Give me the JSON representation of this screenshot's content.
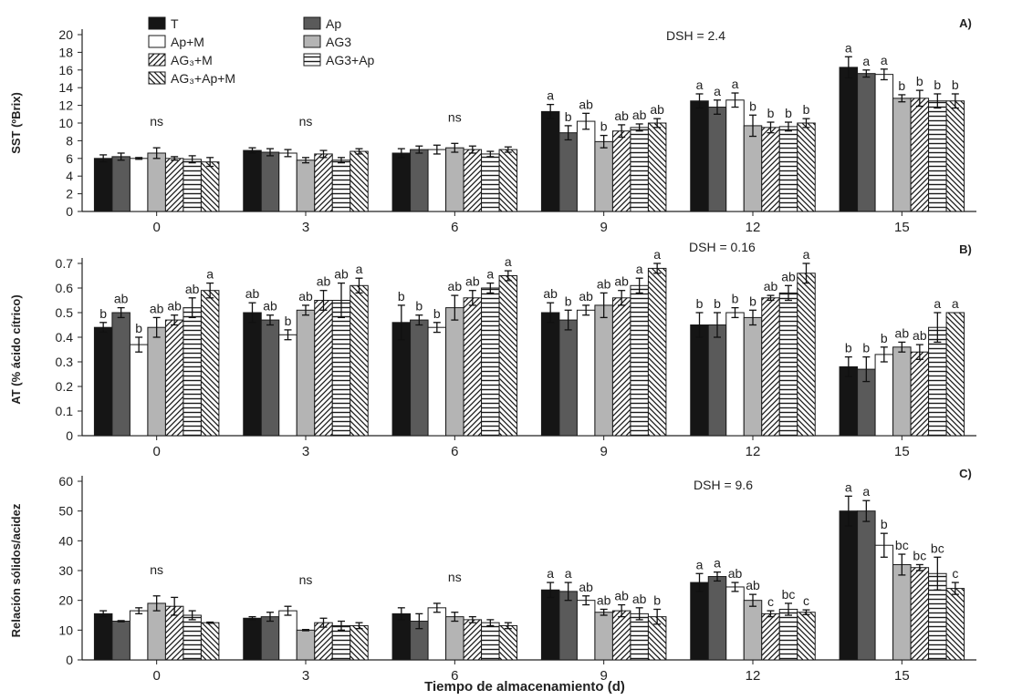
{
  "legend": [
    {
      "key": "T",
      "label": "T",
      "color": "#151515",
      "pattern": "solid"
    },
    {
      "key": "Ap",
      "label": "Ap",
      "color": "#5a5a5a",
      "pattern": "solid"
    },
    {
      "key": "ApM",
      "label": "Ap+M",
      "color": "#ffffff",
      "pattern": "solid"
    },
    {
      "key": "AG3",
      "label": "AG3",
      "color": "#b4b4b4",
      "pattern": "solid"
    },
    {
      "key": "AG3M",
      "label": "AG₃+M",
      "color": "#ffffff",
      "pattern": "diag"
    },
    {
      "key": "AG3Ap",
      "label": "AG3+Ap",
      "color": "#ffffff",
      "pattern": "horiz"
    },
    {
      "key": "AG3ApM",
      "label": "AG₃+Ap+M",
      "color": "#ffffff",
      "pattern": "backdiag"
    }
  ],
  "xlabel": "Tiempo de almacenamiento (d)",
  "chart_data": [
    {
      "type": "bar",
      "panel": "A)",
      "dsh": "DSH = 2.4",
      "ylabel": "SST (ºBrix)",
      "ylim": [
        0,
        20
      ],
      "yticks": [
        0,
        2,
        4,
        6,
        8,
        10,
        12,
        14,
        16,
        18,
        20
      ],
      "categories": [
        "0",
        "3",
        "6",
        "9",
        "12",
        "15"
      ],
      "group_labels": [
        "ns",
        "ns",
        "ns",
        "",
        "",
        ""
      ],
      "series": [
        {
          "name": "T",
          "values": [
            6.0,
            6.9,
            6.6,
            11.3,
            12.5,
            16.3
          ],
          "errors": [
            0.4,
            0.3,
            0.5,
            0.8,
            0.8,
            1.2
          ],
          "labels": [
            "",
            "",
            "",
            "a",
            "a",
            "a"
          ]
        },
        {
          "name": "Ap",
          "values": [
            6.2,
            6.7,
            7.0,
            8.9,
            11.8,
            15.6
          ],
          "errors": [
            0.4,
            0.4,
            0.4,
            0.8,
            0.8,
            0.4
          ],
          "labels": [
            "",
            "",
            "",
            "b",
            "a",
            "a"
          ]
        },
        {
          "name": "Ap+M",
          "values": [
            6.0,
            6.6,
            7.0,
            10.2,
            12.6,
            15.5
          ],
          "errors": [
            0.1,
            0.4,
            0.5,
            0.9,
            0.8,
            0.6
          ],
          "labels": [
            "",
            "",
            "",
            "ab",
            "a",
            "a"
          ]
        },
        {
          "name": "AG3",
          "values": [
            6.6,
            5.8,
            7.2,
            7.9,
            9.7,
            12.8
          ],
          "errors": [
            0.6,
            0.3,
            0.5,
            0.7,
            1.2,
            0.4
          ],
          "labels": [
            "",
            "",
            "",
            "b",
            "b",
            "b"
          ]
        },
        {
          "name": "AG3+M",
          "values": [
            6.0,
            6.5,
            7.0,
            9.1,
            9.5,
            12.8
          ],
          "errors": [
            0.2,
            0.4,
            0.4,
            0.7,
            0.6,
            0.9
          ],
          "labels": [
            "",
            "",
            "",
            "ab",
            "b",
            "b"
          ]
        },
        {
          "name": "AG3+Ap",
          "values": [
            5.9,
            5.8,
            6.5,
            9.5,
            9.6,
            12.5
          ],
          "errors": [
            0.4,
            0.3,
            0.3,
            0.4,
            0.5,
            0.8
          ],
          "labels": [
            "",
            "",
            "",
            "ab",
            "b",
            "b"
          ]
        },
        {
          "name": "AG3+Ap+M",
          "values": [
            5.6,
            6.8,
            7.0,
            10.0,
            10.0,
            12.5
          ],
          "errors": [
            0.5,
            0.3,
            0.3,
            0.5,
            0.5,
            0.8
          ],
          "labels": [
            "",
            "",
            "",
            "ab",
            "b",
            "b"
          ]
        }
      ]
    },
    {
      "type": "bar",
      "panel": "B)",
      "dsh": "DSH = 0.16",
      "ylabel": "AT (% ácido cítrico)",
      "ylim": [
        0,
        0.7
      ],
      "yticks": [
        0,
        0.1,
        0.2,
        0.3,
        0.4,
        0.5,
        0.6,
        0.7
      ],
      "categories": [
        "0",
        "3",
        "6",
        "9",
        "12",
        "15"
      ],
      "group_labels": [
        "",
        "",
        "",
        "",
        "",
        ""
      ],
      "series": [
        {
          "name": "T",
          "values": [
            0.44,
            0.5,
            0.46,
            0.5,
            0.45,
            0.28
          ],
          "errors": [
            0.02,
            0.04,
            0.07,
            0.04,
            0.05,
            0.04
          ],
          "labels": [
            "b",
            "ab",
            "b",
            "ab",
            "b",
            "b"
          ]
        },
        {
          "name": "Ap",
          "values": [
            0.5,
            0.47,
            0.47,
            0.47,
            0.45,
            0.27
          ],
          "errors": [
            0.02,
            0.02,
            0.02,
            0.04,
            0.05,
            0.05
          ],
          "labels": [
            "ab",
            "ab",
            "b",
            "b",
            "b",
            "b"
          ]
        },
        {
          "name": "Ap+M",
          "values": [
            0.37,
            0.41,
            0.44,
            0.51,
            0.5,
            0.33
          ],
          "errors": [
            0.03,
            0.02,
            0.02,
            0.02,
            0.02,
            0.03
          ],
          "labels": [
            "b",
            "b",
            "b",
            "ab",
            "b",
            "b"
          ]
        },
        {
          "name": "AG3",
          "values": [
            0.44,
            0.51,
            0.52,
            0.53,
            0.48,
            0.36
          ],
          "errors": [
            0.04,
            0.02,
            0.05,
            0.05,
            0.03,
            0.02
          ],
          "labels": [
            "ab",
            "ab",
            "ab",
            "ab",
            "b",
            "ab"
          ]
        },
        {
          "name": "AG3+M",
          "values": [
            0.47,
            0.55,
            0.56,
            0.56,
            0.56,
            0.34
          ],
          "errors": [
            0.02,
            0.04,
            0.03,
            0.03,
            0.01,
            0.03
          ],
          "labels": [
            "ab",
            "ab",
            "ab",
            "ab",
            "ab",
            "ab"
          ]
        },
        {
          "name": "AG3+Ap",
          "values": [
            0.52,
            0.55,
            0.6,
            0.61,
            0.58,
            0.44
          ],
          "errors": [
            0.04,
            0.07,
            0.02,
            0.03,
            0.03,
            0.06
          ],
          "labels": [
            "ab",
            "ab",
            "a",
            "a",
            "ab",
            "a"
          ]
        },
        {
          "name": "AG3+Ap+M",
          "values": [
            0.59,
            0.61,
            0.65,
            0.68,
            0.66,
            0.5
          ],
          "errors": [
            0.03,
            0.03,
            0.02,
            0.02,
            0.04,
            0.0
          ],
          "labels": [
            "a",
            "a",
            "a",
            "a",
            "a",
            "a"
          ]
        }
      ]
    },
    {
      "type": "bar",
      "panel": "C)",
      "dsh": "DSH = 9.6",
      "ylabel": "Relación sólidos/acidez",
      "ylim": [
        0,
        60
      ],
      "yticks": [
        0,
        10,
        20,
        30,
        40,
        50,
        60
      ],
      "categories": [
        "0",
        "3",
        "6",
        "9",
        "12",
        "15"
      ],
      "group_labels": [
        "ns",
        "ns",
        "ns",
        "",
        "",
        ""
      ],
      "series": [
        {
          "name": "T",
          "values": [
            15.5,
            14.0,
            15.5,
            23.5,
            26.0,
            50.0
          ],
          "errors": [
            1.0,
            0.5,
            2.0,
            2.5,
            3.0,
            5.0
          ],
          "labels": [
            "",
            "",
            "",
            "a",
            "a",
            "a"
          ]
        },
        {
          "name": "Ap",
          "values": [
            13.0,
            14.5,
            13.0,
            23.0,
            28.0,
            50.0
          ],
          "errors": [
            0.2,
            1.5,
            2.5,
            3.0,
            1.5,
            3.5
          ],
          "labels": [
            "",
            "",
            "",
            "a",
            "a",
            "a"
          ]
        },
        {
          "name": "Ap+M",
          "values": [
            16.5,
            16.5,
            17.5,
            20.0,
            24.5,
            38.5
          ],
          "errors": [
            1.0,
            1.5,
            1.5,
            1.5,
            1.5,
            4.0
          ],
          "labels": [
            "",
            "",
            "",
            "ab",
            "ab",
            "b"
          ]
        },
        {
          "name": "AG3",
          "values": [
            19.0,
            10.0,
            14.5,
            16.0,
            20.0,
            32.0
          ],
          "errors": [
            2.5,
            0.2,
            1.5,
            1.0,
            2.0,
            3.5
          ],
          "labels": [
            "",
            "",
            "",
            "ab",
            "ab",
            "bc"
          ]
        },
        {
          "name": "AG3+M",
          "values": [
            18.0,
            12.5,
            13.5,
            16.5,
            15.5,
            31.0
          ],
          "errors": [
            3.0,
            1.5,
            1.0,
            2.0,
            1.0,
            1.0
          ],
          "labels": [
            "",
            "",
            "",
            "ab",
            "c",
            "bc"
          ]
        },
        {
          "name": "AG3+Ap",
          "values": [
            15.0,
            11.5,
            12.5,
            15.5,
            17.0,
            29.0
          ],
          "errors": [
            1.5,
            1.5,
            1.0,
            2.0,
            2.0,
            5.5
          ],
          "labels": [
            "",
            "",
            "",
            "ab",
            "bc",
            "bc"
          ]
        },
        {
          "name": "AG3+Ap+M",
          "values": [
            12.5,
            11.5,
            11.5,
            14.5,
            16.0,
            24.0
          ],
          "errors": [
            0.2,
            1.0,
            1.0,
            2.5,
            0.8,
            2.0
          ],
          "labels": [
            "",
            "",
            "",
            "b",
            "c",
            "c"
          ]
        }
      ]
    }
  ]
}
